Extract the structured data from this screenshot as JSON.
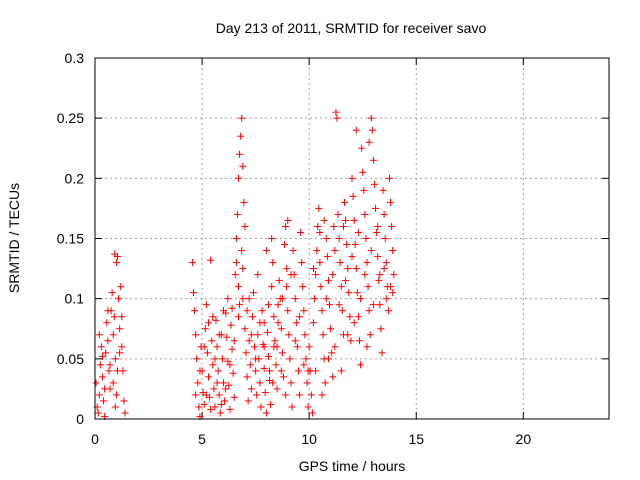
{
  "chart_data": {
    "type": "scatter",
    "title": "Day 213 of 2011, SRMTID for receiver savo",
    "xlabel": "GPS time / hours",
    "ylabel": "SRMTID / TECUs",
    "xlim": [
      0,
      24
    ],
    "ylim": [
      0,
      0.3
    ],
    "xticks": [
      0,
      5,
      10,
      15,
      20
    ],
    "xtick_labels": [
      "0",
      "5",
      "10",
      "15",
      "20"
    ],
    "yticks": [
      0,
      0.05,
      0.1,
      0.15,
      0.2,
      0.25,
      0.3
    ],
    "ytick_labels": [
      "0",
      "0.05",
      "0.1",
      "0.15",
      "0.2",
      "0.25",
      "0.3"
    ],
    "grid": true,
    "marker": "+",
    "color": "#ff0000",
    "series": [
      {
        "name": "SRMTID",
        "points": [
          [
            0.05,
            0.03
          ],
          [
            0.1,
            0.01
          ],
          [
            0.15,
            0.005
          ],
          [
            0.2,
            0.02
          ],
          [
            0.25,
            0.045
          ],
          [
            0.3,
            0.06
          ],
          [
            0.35,
            0.035
          ],
          [
            0.4,
            0.015
          ],
          [
            0.45,
            0.002
          ],
          [
            0.5,
            0.055
          ],
          [
            0.55,
            0.08
          ],
          [
            0.6,
            0.065
          ],
          [
            0.65,
            0.04
          ],
          [
            0.7,
            0.025
          ],
          [
            0.75,
            0.09
          ],
          [
            0.8,
            0.105
          ],
          [
            0.85,
            0.07
          ],
          [
            0.9,
            0.085
          ],
          [
            0.95,
            0.05
          ],
          [
            1.0,
            0.02
          ],
          [
            1.05,
            0.135
          ],
          [
            1.1,
            0.1
          ],
          [
            1.15,
            0.075
          ],
          [
            1.2,
            0.11
          ],
          [
            1.25,
            0.06
          ],
          [
            1.3,
            0.04
          ],
          [
            1.35,
            0.015
          ],
          [
            1.4,
            0.005
          ],
          [
            0.92,
            0.137
          ],
          [
            1.0,
            0.13
          ],
          [
            0.6,
            0.09
          ],
          [
            0.7,
            0.045
          ],
          [
            0.85,
            0.03
          ],
          [
            0.95,
            0.01
          ],
          [
            1.15,
            0.055
          ],
          [
            1.25,
            0.085
          ],
          [
            0.2,
            0.07
          ],
          [
            0.45,
            0.025
          ],
          [
            0.35,
            0.052
          ],
          [
            1.05,
            0.04
          ],
          [
            4.55,
            0.13
          ],
          [
            4.6,
            0.105
          ],
          [
            4.65,
            0.09
          ],
          [
            4.7,
            0.07
          ],
          [
            4.75,
            0.05
          ],
          [
            4.8,
            0.03
          ],
          [
            4.85,
            0.01
          ],
          [
            4.9,
            0.002
          ],
          [
            4.95,
            0.06
          ],
          [
            5.0,
            0.04
          ],
          [
            5.05,
            0.022
          ],
          [
            5.1,
            0.012
          ],
          [
            5.15,
            0.075
          ],
          [
            5.2,
            0.095
          ],
          [
            5.25,
            0.055
          ],
          [
            5.3,
            0.035
          ],
          [
            5.35,
            0.018
          ],
          [
            5.4,
            0.132
          ],
          [
            5.45,
            0.065
          ],
          [
            5.5,
            0.045
          ],
          [
            5.55,
            0.025
          ],
          [
            5.6,
            0.01
          ],
          [
            5.65,
            0.082
          ],
          [
            5.7,
            0.06
          ],
          [
            5.75,
            0.04
          ],
          [
            5.8,
            0.02
          ],
          [
            5.85,
            0.005
          ],
          [
            5.9,
            0.07
          ],
          [
            5.95,
            0.05
          ],
          [
            6.0,
            0.03
          ],
          [
            6.05,
            0.015
          ],
          [
            6.1,
            0.088
          ],
          [
            6.15,
            0.068
          ],
          [
            6.2,
            0.048
          ],
          [
            6.25,
            0.028
          ],
          [
            6.3,
            0.008
          ],
          [
            6.35,
            0.078
          ],
          [
            6.4,
            0.058
          ],
          [
            6.45,
            0.038
          ],
          [
            6.5,
            0.018
          ],
          [
            6.55,
            0.12
          ],
          [
            6.6,
            0.15
          ],
          [
            6.65,
            0.17
          ],
          [
            6.7,
            0.2
          ],
          [
            6.75,
            0.22
          ],
          [
            6.8,
            0.235
          ],
          [
            6.85,
            0.25
          ],
          [
            6.9,
            0.21
          ],
          [
            6.95,
            0.18
          ],
          [
            7.0,
            0.16
          ],
          [
            6.6,
            0.13
          ],
          [
            6.7,
            0.11
          ],
          [
            6.75,
            0.095
          ],
          [
            6.85,
            0.14
          ],
          [
            6.9,
            0.125
          ],
          [
            7.0,
            0.075
          ],
          [
            7.05,
            0.055
          ],
          [
            7.1,
            0.035
          ],
          [
            7.15,
            0.015
          ],
          [
            7.2,
            0.065
          ],
          [
            7.25,
            0.045
          ],
          [
            7.3,
            0.025
          ],
          [
            7.35,
            0.085
          ],
          [
            7.4,
            0.105
          ],
          [
            7.45,
            0.06
          ],
          [
            7.5,
            0.04
          ],
          [
            7.55,
            0.02
          ],
          [
            7.6,
            0.07
          ],
          [
            7.65,
            0.05
          ],
          [
            7.7,
            0.03
          ],
          [
            7.75,
            0.01
          ],
          [
            7.8,
            0.09
          ],
          [
            7.85,
            0.062
          ],
          [
            7.9,
            0.042
          ],
          [
            7.95,
            0.022
          ],
          [
            8.0,
            0.005
          ],
          [
            8.05,
            0.072
          ],
          [
            8.1,
            0.052
          ],
          [
            8.15,
            0.032
          ],
          [
            8.2,
            0.012
          ],
          [
            8.25,
            0.11
          ],
          [
            8.3,
            0.13
          ],
          [
            8.35,
            0.085
          ],
          [
            8.4,
            0.065
          ],
          [
            8.45,
            0.045
          ],
          [
            8.5,
            0.025
          ],
          [
            8.55,
            0.095
          ],
          [
            8.6,
            0.115
          ],
          [
            8.65,
            0.1
          ],
          [
            8.7,
            0.075
          ],
          [
            8.75,
            0.055
          ],
          [
            8.8,
            0.035
          ],
          [
            8.85,
            0.145
          ],
          [
            8.9,
            0.16
          ],
          [
            8.95,
            0.125
          ],
          [
            9.0,
            0.09
          ],
          [
            9.05,
            0.07
          ],
          [
            9.1,
            0.05
          ],
          [
            9.15,
            0.03
          ],
          [
            9.2,
            0.01
          ],
          [
            9.25,
            0.14
          ],
          [
            9.3,
            0.12
          ],
          [
            9.35,
            0.1
          ],
          [
            9.4,
            0.08
          ],
          [
            9.45,
            0.06
          ],
          [
            9.5,
            0.04
          ],
          [
            9.55,
            0.02
          ],
          [
            9.6,
            0.155
          ],
          [
            9.65,
            0.13
          ],
          [
            9.7,
            0.11
          ],
          [
            9.75,
            0.09
          ],
          [
            9.8,
            0.07
          ],
          [
            9.85,
            0.05
          ],
          [
            9.9,
            0.03
          ],
          [
            9.95,
            0.01
          ],
          [
            5.2,
            0.02
          ],
          [
            5.4,
            0.008
          ],
          [
            5.6,
            0.05
          ],
          [
            5.8,
            0.07
          ],
          [
            6.0,
            0.09
          ],
          [
            6.2,
            0.1
          ],
          [
            6.4,
            0.092
          ],
          [
            7.2,
            0.1
          ],
          [
            7.6,
            0.12
          ],
          [
            7.9,
            0.08
          ],
          [
            8.1,
            0.095
          ],
          [
            8.3,
            0.03
          ],
          [
            8.5,
            0.06
          ],
          [
            8.7,
            0.04
          ],
          [
            8.9,
            0.02
          ],
          [
            4.7,
            0.02
          ],
          [
            4.9,
            0.04
          ],
          [
            5.1,
            0.06
          ],
          [
            5.3,
            0.08
          ],
          [
            5.5,
            0.085
          ],
          [
            5.7,
            0.03
          ],
          [
            5.9,
            0.012
          ],
          [
            6.1,
            0.025
          ],
          [
            6.3,
            0.045
          ],
          [
            6.5,
            0.065
          ],
          [
            6.7,
            0.085
          ],
          [
            6.9,
            0.1
          ],
          [
            7.1,
            0.09
          ],
          [
            7.3,
            0.07
          ],
          [
            7.5,
            0.05
          ],
          [
            7.7,
            0.08
          ],
          [
            7.9,
            0.06
          ],
          [
            8.15,
            0.04
          ],
          [
            8.35,
            0.06
          ],
          [
            8.55,
            0.08
          ],
          [
            8.75,
            0.1
          ],
          [
            8.95,
            0.11
          ],
          [
            9.15,
            0.12
          ],
          [
            9.35,
            0.065
          ],
          [
            9.55,
            0.085
          ],
          [
            9.75,
            0.045
          ],
          [
            9.95,
            0.04
          ],
          [
            8.0,
            0.14
          ],
          [
            8.25,
            0.15
          ],
          [
            9.0,
            0.165
          ],
          [
            10.0,
            0.06
          ],
          [
            10.05,
            0.04
          ],
          [
            10.1,
            0.02
          ],
          [
            10.15,
            0.005
          ],
          [
            10.2,
            0.08
          ],
          [
            10.25,
            0.1
          ],
          [
            10.3,
            0.12
          ],
          [
            10.35,
            0.14
          ],
          [
            10.4,
            0.16
          ],
          [
            10.45,
            0.175
          ],
          [
            10.5,
            0.13
          ],
          [
            10.55,
            0.11
          ],
          [
            10.6,
            0.09
          ],
          [
            10.65,
            0.07
          ],
          [
            10.7,
            0.05
          ],
          [
            10.75,
            0.03
          ],
          [
            10.8,
            0.15
          ],
          [
            10.85,
            0.135
          ],
          [
            10.9,
            0.115
          ],
          [
            10.95,
            0.095
          ],
          [
            11.0,
            0.075
          ],
          [
            11.05,
            0.055
          ],
          [
            11.1,
            0.035
          ],
          [
            11.15,
            0.16
          ],
          [
            11.2,
            0.14
          ],
          [
            11.25,
            0.255
          ],
          [
            11.3,
            0.25
          ],
          [
            11.35,
            0.17
          ],
          [
            11.4,
            0.15
          ],
          [
            11.45,
            0.13
          ],
          [
            11.5,
            0.11
          ],
          [
            11.55,
            0.09
          ],
          [
            11.6,
            0.07
          ],
          [
            11.65,
            0.18
          ],
          [
            11.7,
            0.165
          ],
          [
            11.75,
            0.145
          ],
          [
            11.8,
            0.125
          ],
          [
            11.85,
            0.105
          ],
          [
            11.9,
            0.085
          ],
          [
            11.95,
            0.065
          ],
          [
            12.0,
            0.2
          ],
          [
            12.05,
            0.185
          ],
          [
            12.1,
            0.165
          ],
          [
            12.15,
            0.145
          ],
          [
            12.2,
            0.125
          ],
          [
            12.25,
            0.105
          ],
          [
            12.3,
            0.085
          ],
          [
            12.35,
            0.065
          ],
          [
            12.4,
            0.045
          ],
          [
            12.45,
            0.225
          ],
          [
            12.5,
            0.205
          ],
          [
            12.55,
            0.19
          ],
          [
            12.6,
            0.17
          ],
          [
            12.65,
            0.15
          ],
          [
            12.7,
            0.13
          ],
          [
            12.75,
            0.11
          ],
          [
            12.8,
            0.09
          ],
          [
            12.85,
            0.07
          ],
          [
            12.9,
            0.25
          ],
          [
            12.95,
            0.24
          ],
          [
            13.0,
            0.215
          ],
          [
            13.05,
            0.195
          ],
          [
            13.1,
            0.175
          ],
          [
            13.15,
            0.155
          ],
          [
            13.2,
            0.135
          ],
          [
            13.25,
            0.115
          ],
          [
            13.3,
            0.095
          ],
          [
            13.35,
            0.075
          ],
          [
            13.4,
            0.055
          ],
          [
            13.45,
            0.19
          ],
          [
            13.5,
            0.17
          ],
          [
            13.55,
            0.15
          ],
          [
            13.6,
            0.13
          ],
          [
            13.65,
            0.11
          ],
          [
            13.7,
            0.09
          ],
          [
            13.75,
            0.2
          ],
          [
            13.8,
            0.18
          ],
          [
            13.85,
            0.16
          ],
          [
            13.9,
            0.14
          ],
          [
            13.95,
            0.12
          ],
          [
            10.3,
            0.04
          ],
          [
            10.6,
            0.02
          ],
          [
            10.9,
            0.05
          ],
          [
            11.2,
            0.06
          ],
          [
            11.5,
            0.04
          ],
          [
            11.8,
            0.07
          ],
          [
            12.1,
            0.08
          ],
          [
            12.4,
            0.1
          ],
          [
            12.7,
            0.06
          ],
          [
            13.0,
            0.095
          ],
          [
            13.3,
            0.12
          ],
          [
            13.6,
            0.1
          ],
          [
            13.9,
            0.105
          ],
          [
            10.2,
            0.125
          ],
          [
            10.5,
            0.155
          ],
          [
            10.8,
            0.1
          ],
          [
            11.1,
            0.12
          ],
          [
            11.4,
            0.095
          ],
          [
            11.7,
            0.115
          ],
          [
            12.0,
            0.135
          ],
          [
            12.3,
            0.155
          ],
          [
            12.6,
            0.12
          ],
          [
            12.9,
            0.14
          ],
          [
            13.2,
            0.16
          ],
          [
            13.5,
            0.125
          ],
          [
            13.8,
            0.11
          ],
          [
            12.2,
            0.24
          ],
          [
            12.8,
            0.23
          ],
          [
            11.6,
            0.16
          ],
          [
            10.7,
            0.165
          ]
        ]
      }
    ]
  }
}
